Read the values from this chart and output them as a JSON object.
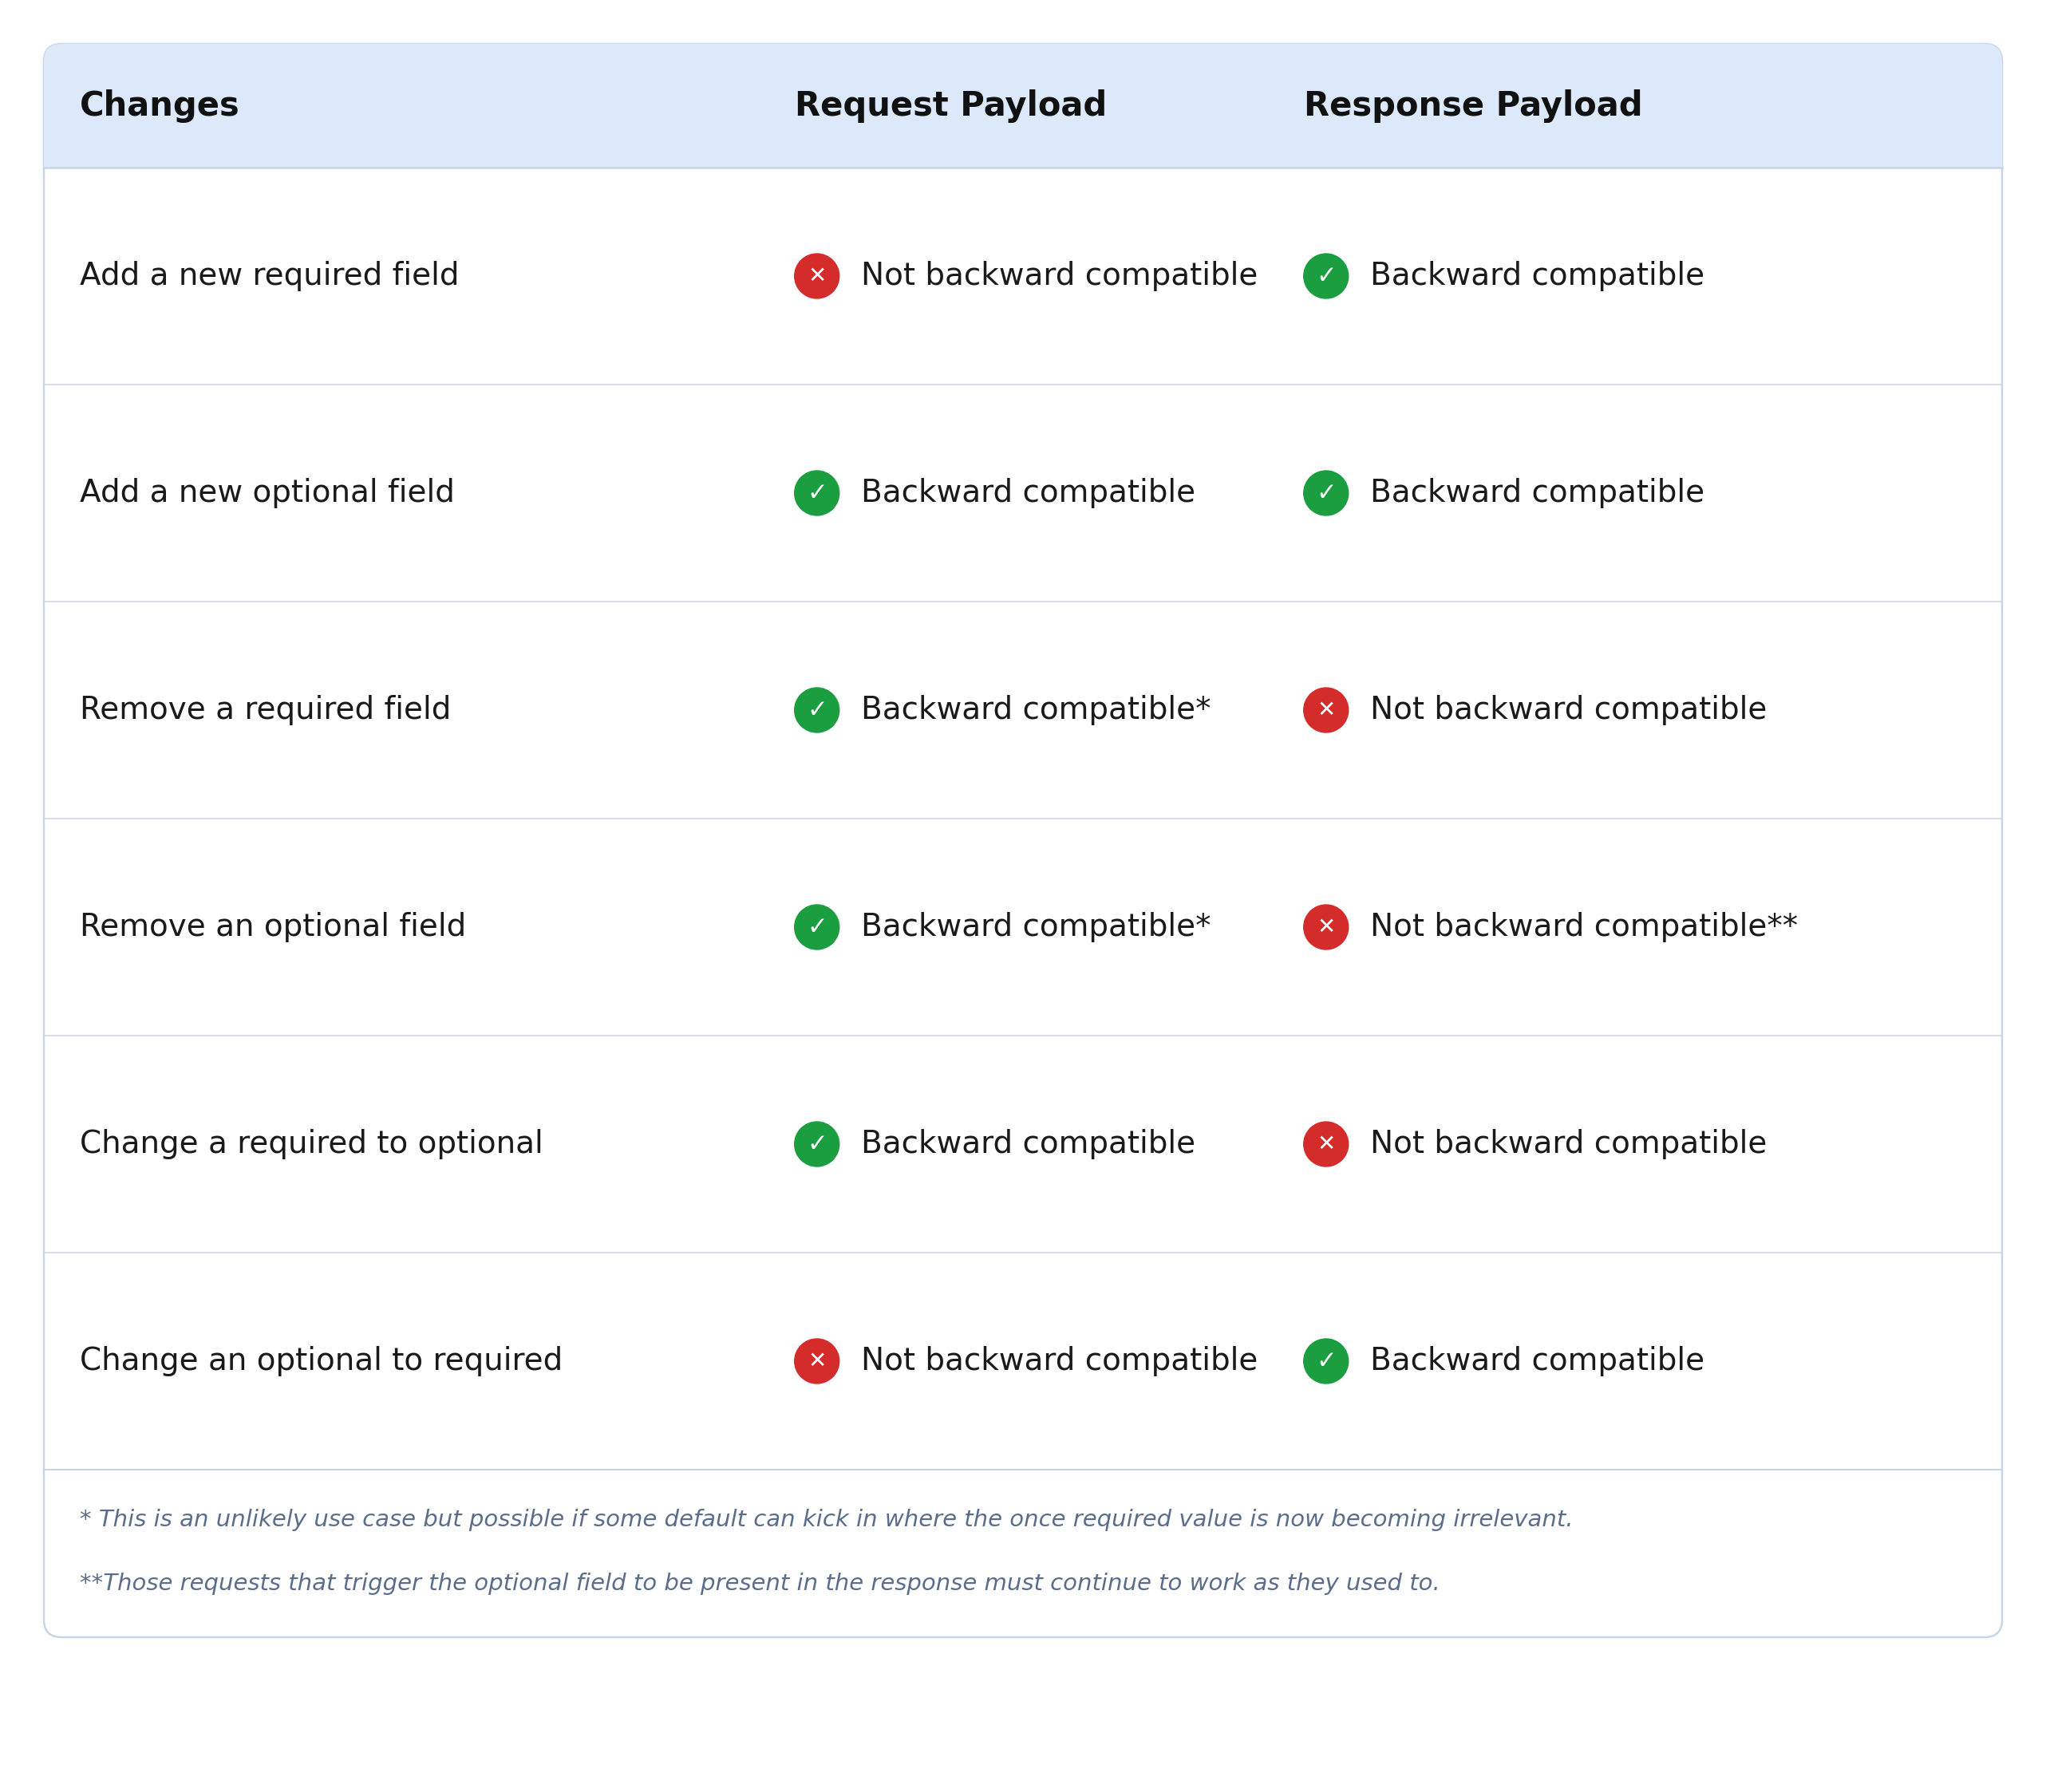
{
  "bg_color": "#ffffff",
  "header_bg": "#dce9fb",
  "border_color": "#c8d5e8",
  "row_line_color": "#d0d8e4",
  "header_text_color": "#111111",
  "row_text_color": "#1a1a1a",
  "footnote_color": "#5a6e8c",
  "green_color": "#1a9e3f",
  "red_color": "#d42b2b",
  "columns": [
    "Changes",
    "Request Payload",
    "Response Payload"
  ],
  "rows": [
    {
      "change": "Add a new required field",
      "request_icon": "red",
      "request_text": "Not backward compatible",
      "response_icon": "green",
      "response_text": "Backward compatible"
    },
    {
      "change": "Add a new optional field",
      "request_icon": "green",
      "request_text": "Backward compatible",
      "response_icon": "green",
      "response_text": "Backward compatible"
    },
    {
      "change": "Remove a required field",
      "request_icon": "green",
      "request_text": "Backward compatible*",
      "response_icon": "red",
      "response_text": "Not backward compatible"
    },
    {
      "change": "Remove an optional field",
      "request_icon": "green",
      "request_text": "Backward compatible*",
      "response_icon": "red",
      "response_text": "Not backward compatible**"
    },
    {
      "change": "Change a required to optional",
      "request_icon": "green",
      "request_text": "Backward compatible",
      "response_icon": "red",
      "response_text": "Not backward compatible"
    },
    {
      "change": "Change an optional to required",
      "request_icon": "red",
      "request_text": "Not backward compatible",
      "response_icon": "green",
      "response_text": "Backward compatible"
    }
  ],
  "footnote1": "* This is an unlikely use case but possible if some default can kick in where the once required value is now becoming irrelevant.",
  "footnote2": "**Those requests that trigger the optional field to be present in the response must continue to work as they used to.",
  "header_fontsize": 30,
  "row_fontsize": 28,
  "footnote_fontsize": 21,
  "icon_fontsize": 22
}
